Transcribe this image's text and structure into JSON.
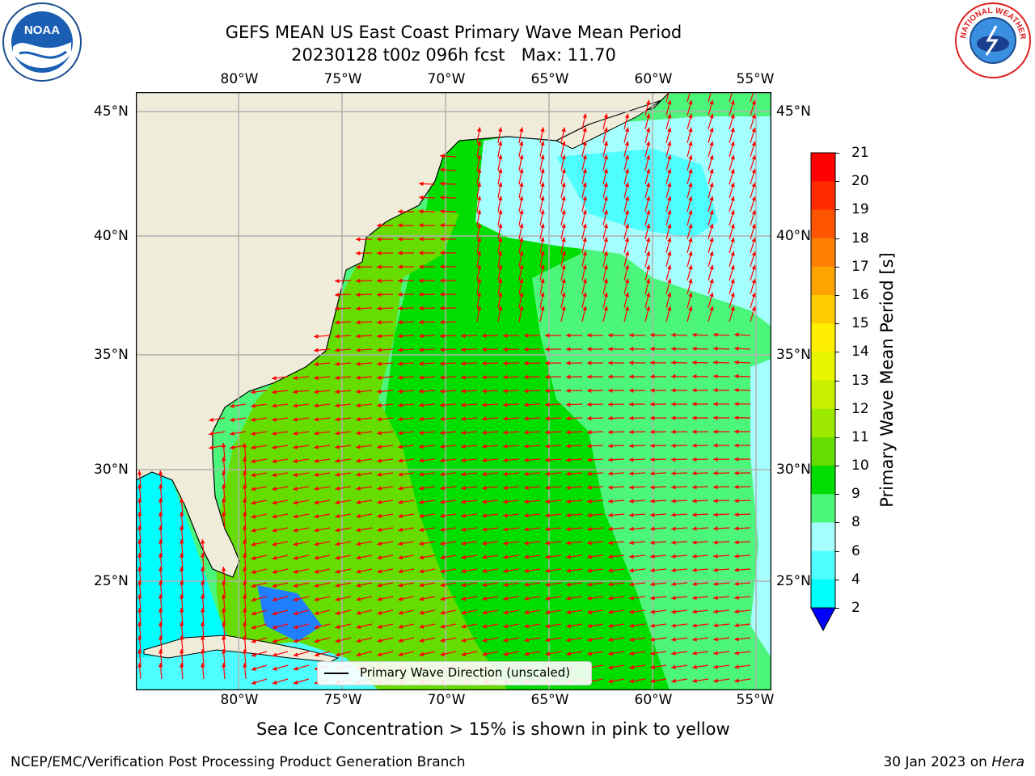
{
  "title": {
    "line1": "GEFS MEAN US East Coast Primary Wave Mean Period",
    "line2": "20230128 t00z 096h fcst   Max: 11.70"
  },
  "map": {
    "lon_ticks_top": [
      "80°W",
      "75°W",
      "70°W",
      "65°W",
      "60°W",
      "55°W"
    ],
    "lon_ticks_bottom": [
      "80°W",
      "75°W",
      "70°W",
      "65°W",
      "60°W",
      "55°W"
    ],
    "lat_ticks_left": [
      "45°N",
      "40°N",
      "35°N",
      "30°N",
      "25°N"
    ],
    "lat_ticks_right": [
      "45°N",
      "40°N",
      "35°N",
      "30°N",
      "25°N"
    ],
    "lon_range": [
      -85,
      -54
    ],
    "lat_range": [
      20.5,
      45.8
    ],
    "land_color": "#efedda",
    "arrow_color": "#ff0000",
    "grid": true
  },
  "legend": {
    "label": "Primary Wave Direction (unscaled)"
  },
  "colorbar": {
    "label": "Primary Wave Mean Period [s]",
    "ticks": [
      "21",
      "20",
      "19",
      "18",
      "17",
      "16",
      "15",
      "14",
      "13",
      "12",
      "11",
      "10",
      "9",
      "8",
      "6",
      "4",
      "2"
    ],
    "colors": [
      "#ff0000",
      "#ff2a00",
      "#ff5500",
      "#ff7f00",
      "#ffa300",
      "#ffcc00",
      "#ffee00",
      "#e6f500",
      "#c8f000",
      "#9de800",
      "#66dd00",
      "#00dd00",
      "#4cf67a",
      "#a6ffff",
      "#4dffff",
      "#00ffff",
      "#00eeff",
      "#0080ff",
      "#0000ff"
    ]
  },
  "chart_data": {
    "type": "heatmap",
    "title": "GEFS MEAN US East Coast Primary Wave Mean Period",
    "subtitle": "20230128 t00z 096h fcst   Max: 11.70",
    "variable": "Primary Wave Mean Period [s]",
    "max_value": 11.7,
    "colorbar_levels": [
      2,
      4,
      6,
      8,
      9,
      10,
      11,
      12,
      13,
      14,
      15,
      16,
      17,
      18,
      19,
      20,
      21
    ],
    "lon_ticks": [
      "80°W",
      "75°W",
      "70°W",
      "65°W",
      "60°W",
      "55°W"
    ],
    "lat_ticks": [
      "25°N",
      "30°N",
      "35°N",
      "40°N",
      "45°N"
    ]
  },
  "subtitle": "Sea Ice Concentration > 15% is shown in pink to yellow",
  "footer": {
    "left": "NCEP/EMC/Verification Post Processing Product Generation Branch",
    "right_prefix": "30 Jan 2023 on ",
    "right_machine": "Hera"
  },
  "logos": {
    "noaa_text": "NOAA",
    "nws_text": "NATIONAL WEATHER SERVICE"
  }
}
